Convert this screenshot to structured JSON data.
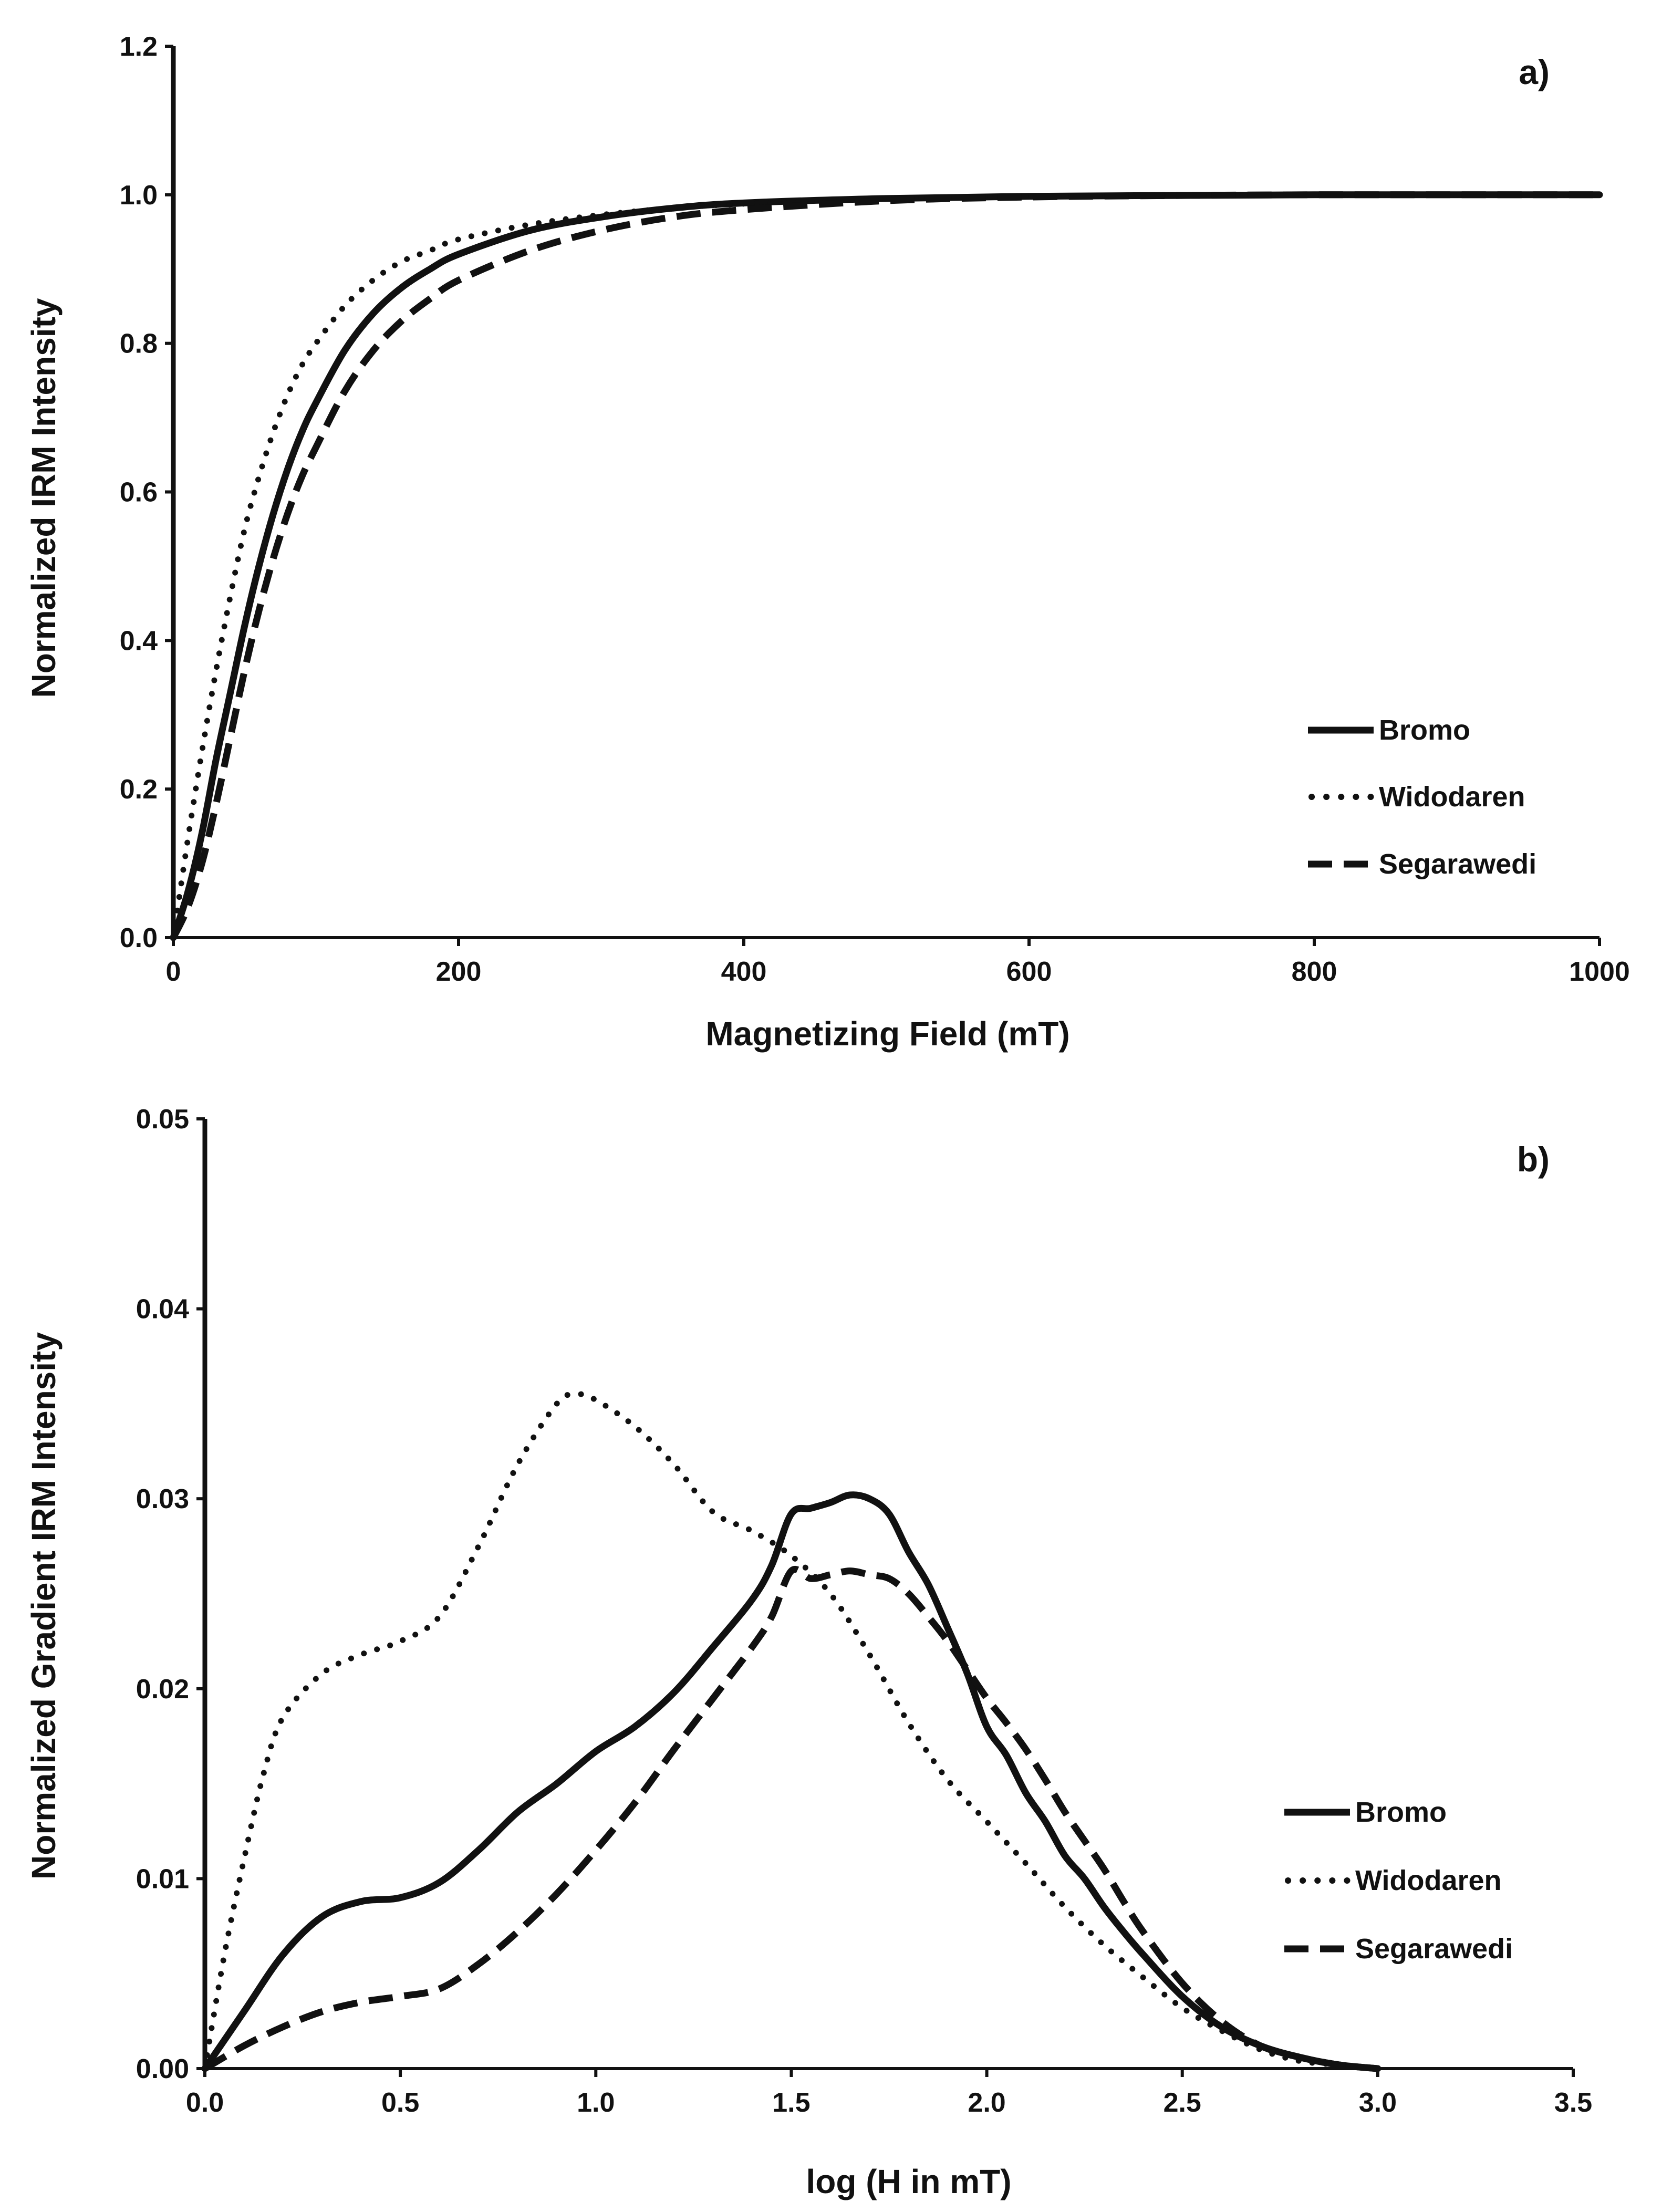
{
  "chart_data": [
    {
      "type": "line",
      "panel_label": "a)",
      "xlabel": "Magnetizing Field (mT)",
      "ylabel": "Normalized IRM Intensity",
      "xlim": [
        0,
        1000
      ],
      "ylim": [
        0,
        1.2
      ],
      "xticks": [
        "0",
        "200",
        "400",
        "600",
        "800",
        "1000"
      ],
      "yticks": [
        "0.0",
        "0.2",
        "0.4",
        "0.6",
        "0.8",
        "1.0",
        "1.2"
      ],
      "legend_position": "bottom-right",
      "series": [
        {
          "name": "Bromo",
          "style": "solid",
          "x": [
            0,
            10,
            20,
            30,
            40,
            50,
            60,
            70,
            80,
            90,
            100,
            120,
            140,
            160,
            180,
            200,
            250,
            300,
            350,
            400,
            500,
            600,
            700,
            800,
            900,
            1000
          ],
          "y": [
            0,
            0.06,
            0.14,
            0.24,
            0.33,
            0.42,
            0.5,
            0.57,
            0.63,
            0.68,
            0.72,
            0.79,
            0.84,
            0.875,
            0.9,
            0.92,
            0.952,
            0.97,
            0.982,
            0.989,
            0.995,
            0.998,
            0.999,
            1.0,
            1.0,
            1.0
          ]
        },
        {
          "name": "Widodaren",
          "style": "dotted",
          "x": [
            0,
            10,
            20,
            30,
            40,
            50,
            60,
            70,
            80,
            90,
            100,
            120,
            140,
            160,
            180,
            200,
            250,
            300,
            350,
            400,
            500,
            600,
            700,
            800,
            900,
            1000
          ],
          "y": [
            0,
            0.13,
            0.25,
            0.36,
            0.46,
            0.55,
            0.62,
            0.68,
            0.73,
            0.77,
            0.8,
            0.85,
            0.885,
            0.91,
            0.925,
            0.94,
            0.96,
            0.973,
            0.982,
            0.988,
            0.995,
            0.998,
            0.999,
            1.0,
            1.0,
            1.0
          ]
        },
        {
          "name": "Segarawedi",
          "style": "dashed",
          "x": [
            0,
            10,
            20,
            30,
            40,
            50,
            60,
            70,
            80,
            90,
            100,
            120,
            140,
            160,
            180,
            200,
            250,
            300,
            350,
            400,
            500,
            600,
            700,
            800,
            900,
            1000
          ],
          "y": [
            0,
            0.04,
            0.1,
            0.18,
            0.27,
            0.36,
            0.44,
            0.51,
            0.57,
            0.62,
            0.66,
            0.735,
            0.79,
            0.83,
            0.86,
            0.885,
            0.925,
            0.952,
            0.97,
            0.98,
            0.992,
            0.997,
            0.999,
            1.0,
            1.0,
            1.0
          ]
        }
      ]
    },
    {
      "type": "line",
      "panel_label": "b)",
      "xlabel": "log (H in mT)",
      "ylabel": "Normalized Gradient IRM Intensity",
      "xlim": [
        0,
        3.5
      ],
      "ylim": [
        0,
        0.05
      ],
      "xticks": [
        "0.0",
        "0.5",
        "1.0",
        "1.5",
        "2.0",
        "2.5",
        "3.0",
        "3.5"
      ],
      "yticks": [
        "0.00",
        "0.01",
        "0.02",
        "0.03",
        "0.04",
        "0.05"
      ],
      "legend_position": "bottom-right",
      "series": [
        {
          "name": "Bromo",
          "style": "solid",
          "x": [
            0.0,
            0.1,
            0.2,
            0.3,
            0.4,
            0.5,
            0.6,
            0.7,
            0.8,
            0.9,
            1.0,
            1.1,
            1.2,
            1.3,
            1.4,
            1.45,
            1.5,
            1.55,
            1.6,
            1.65,
            1.7,
            1.75,
            1.8,
            1.85,
            1.9,
            1.95,
            2.0,
            2.05,
            2.1,
            2.15,
            2.2,
            2.25,
            2.3,
            2.35,
            2.4,
            2.5,
            2.6,
            2.7,
            2.8,
            2.9,
            3.0
          ],
          "y": [
            0.0,
            0.003,
            0.006,
            0.008,
            0.0088,
            0.009,
            0.0098,
            0.0115,
            0.0135,
            0.015,
            0.0167,
            0.018,
            0.0198,
            0.0222,
            0.0247,
            0.0265,
            0.0292,
            0.0295,
            0.0298,
            0.0302,
            0.03,
            0.0292,
            0.0272,
            0.0255,
            0.0232,
            0.0208,
            0.018,
            0.0165,
            0.0145,
            0.013,
            0.0112,
            0.01,
            0.0085,
            0.0072,
            0.006,
            0.0038,
            0.0022,
            0.0012,
            0.0006,
            0.0002,
            0.0
          ]
        },
        {
          "name": "Widodaren",
          "style": "dotted",
          "x": [
            0.0,
            0.05,
            0.1,
            0.15,
            0.2,
            0.3,
            0.4,
            0.5,
            0.6,
            0.7,
            0.8,
            0.9,
            0.95,
            1.0,
            1.1,
            1.2,
            1.3,
            1.4,
            1.5,
            1.6,
            1.7,
            1.8,
            1.9,
            2.0,
            2.1,
            2.2,
            2.3,
            2.4,
            2.5,
            2.6,
            2.7,
            2.8,
            2.9,
            3.0
          ],
          "y": [
            0.0,
            0.006,
            0.011,
            0.0155,
            0.0185,
            0.0208,
            0.0218,
            0.0225,
            0.0238,
            0.0275,
            0.0318,
            0.035,
            0.0355,
            0.0352,
            0.0338,
            0.0318,
            0.0293,
            0.0283,
            0.027,
            0.025,
            0.0218,
            0.0182,
            0.0152,
            0.013,
            0.0108,
            0.0085,
            0.0065,
            0.0048,
            0.0032,
            0.002,
            0.001,
            0.0004,
            0.0002,
            0.0
          ]
        },
        {
          "name": "Segarawedi",
          "style": "dashed",
          "x": [
            0.0,
            0.1,
            0.2,
            0.3,
            0.4,
            0.5,
            0.6,
            0.7,
            0.8,
            0.9,
            1.0,
            1.1,
            1.2,
            1.3,
            1.4,
            1.45,
            1.5,
            1.55,
            1.6,
            1.65,
            1.7,
            1.75,
            1.8,
            1.85,
            1.9,
            1.95,
            2.0,
            2.05,
            2.1,
            2.15,
            2.2,
            2.25,
            2.3,
            2.35,
            2.4,
            2.5,
            2.6,
            2.7,
            2.8,
            2.9,
            3.0
          ],
          "y": [
            0.0,
            0.0012,
            0.0022,
            0.003,
            0.0035,
            0.0038,
            0.0042,
            0.0055,
            0.0072,
            0.0092,
            0.0115,
            0.014,
            0.0168,
            0.0195,
            0.0222,
            0.0238,
            0.0262,
            0.0258,
            0.026,
            0.0262,
            0.026,
            0.0258,
            0.025,
            0.0238,
            0.0225,
            0.021,
            0.0195,
            0.0182,
            0.0168,
            0.0152,
            0.0135,
            0.012,
            0.0105,
            0.0088,
            0.0072,
            0.0045,
            0.0025,
            0.0012,
            0.0006,
            0.0002,
            0.0
          ]
        }
      ]
    }
  ]
}
